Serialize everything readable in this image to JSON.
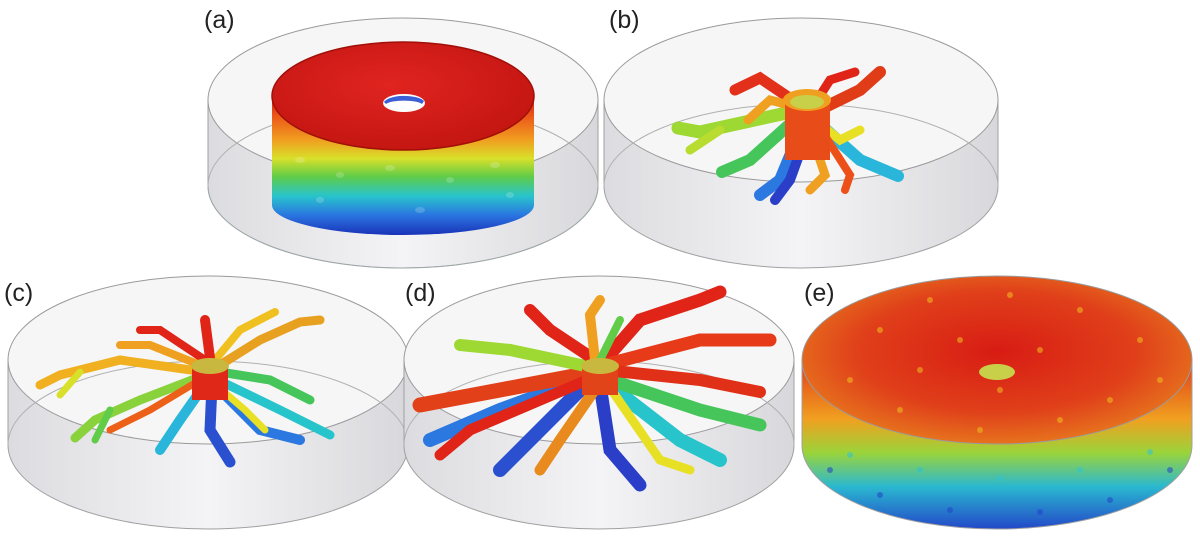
{
  "panels": [
    {
      "id": "a",
      "label": "(a)"
    },
    {
      "id": "b",
      "label": "(b)"
    },
    {
      "id": "c",
      "label": "(c)"
    },
    {
      "id": "d",
      "label": "(d)"
    },
    {
      "id": "e",
      "label": "(e)"
    }
  ],
  "colors": {
    "container_fill": "#e8e8ea",
    "container_stroke": "#9a9a9a",
    "surface_top": "#d71916",
    "surface_mid_orange": "#f07a1a",
    "surface_yellow": "#e8e024",
    "surface_green": "#33c25a",
    "surface_cyan": "#2ec2d6",
    "surface_blue": "#2042c8",
    "hole_blue": "#3a5fd6"
  }
}
